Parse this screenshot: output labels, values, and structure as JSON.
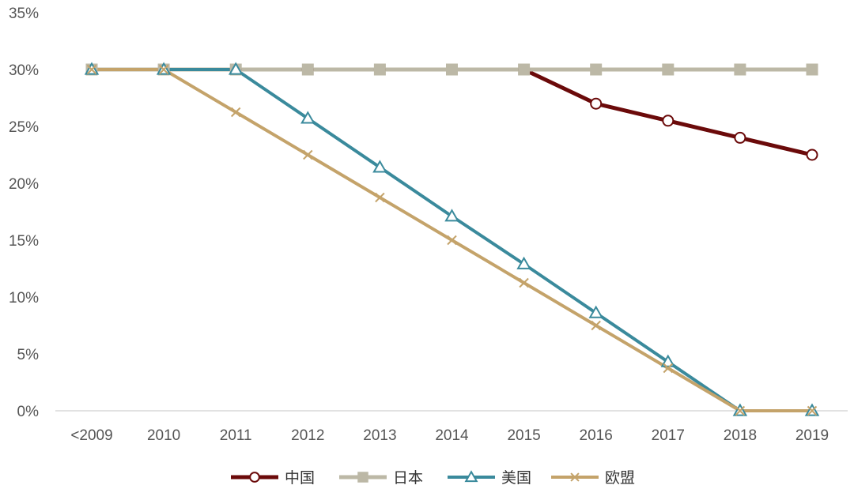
{
  "chart_data": {
    "type": "line",
    "categories": [
      "<2009",
      "2010",
      "2011",
      "2012",
      "2013",
      "2014",
      "2015",
      "2016",
      "2017",
      "2018",
      "2019"
    ],
    "y_ticks": [
      "0%",
      "5%",
      "10%",
      "15%",
      "20%",
      "25%",
      "30%",
      "35%"
    ],
    "ylim": [
      0,
      35
    ],
    "grid": false,
    "legend_position": "bottom",
    "series": [
      {
        "name": "中国",
        "values": [
          30,
          30,
          30,
          30,
          30,
          30,
          30,
          27,
          25.5,
          24,
          22.5
        ],
        "color": "#6b0a0a",
        "marker": "circle"
      },
      {
        "name": "日本",
        "values": [
          30,
          30,
          30,
          30,
          30,
          30,
          30,
          30,
          30,
          30,
          30
        ],
        "color": "#bcb8a6",
        "marker": "square"
      },
      {
        "name": "美国",
        "values": [
          30,
          30,
          30,
          25.7,
          21.4,
          17.1,
          12.9,
          8.6,
          4.3,
          0,
          0
        ],
        "color": "#3a8a9c",
        "marker": "triangle"
      },
      {
        "name": "欧盟",
        "values": [
          30,
          30,
          26.25,
          22.5,
          18.75,
          15,
          11.25,
          7.5,
          3.75,
          0,
          0
        ],
        "color": "#c4a36a",
        "marker": "x"
      }
    ]
  }
}
